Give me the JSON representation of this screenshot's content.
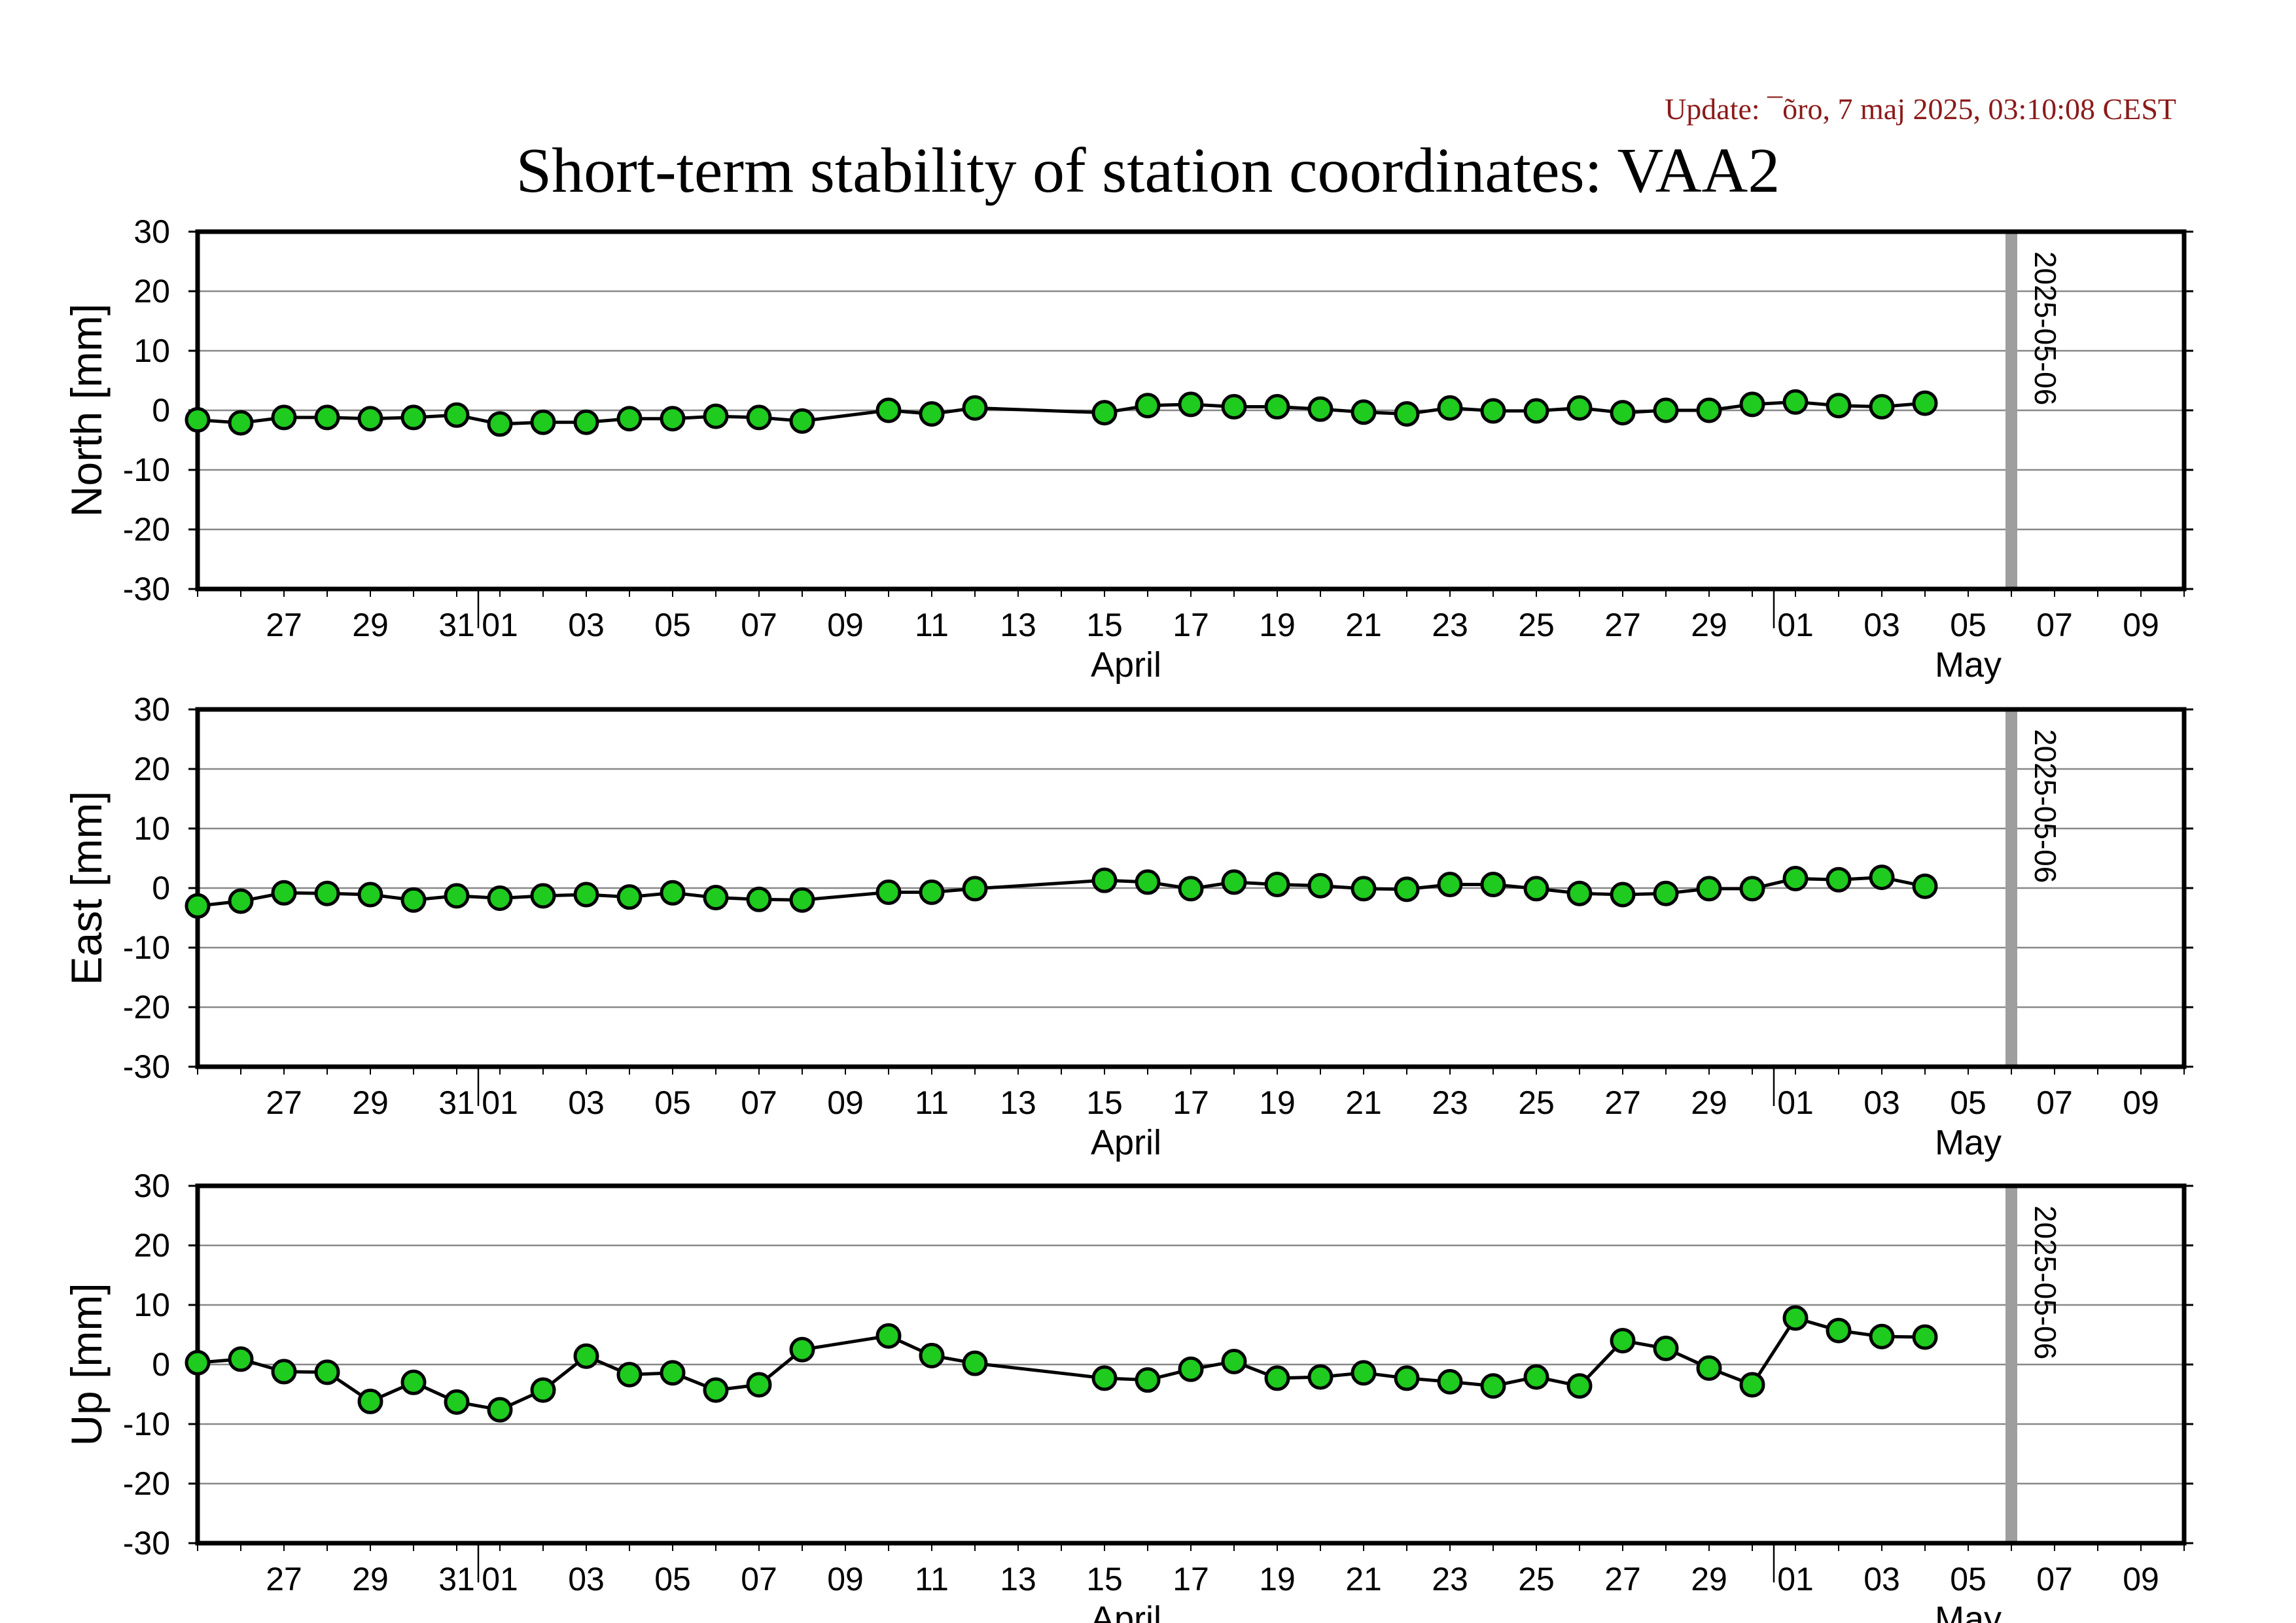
{
  "update_text": "Update: ¯õro, 7 maj 2025, 03:10:08 CEST",
  "title": "Short-term stability of station coordinates: VAA2",
  "colors": {
    "marker_fill": "#1ecb1e",
    "marker_stroke": "#000000",
    "line": "#000000",
    "current_day_bar": "#9e9e9e",
    "grid": "#888888",
    "update_text": "#8b1a1a"
  },
  "chart_data": [
    {
      "type": "line",
      "panel": "north",
      "ylabel": "North [mm]",
      "ylim": [
        -30,
        30
      ],
      "yticks": [
        "30",
        "20",
        "10",
        "0",
        "-10",
        "-20",
        "-30"
      ],
      "xlim": [
        "2025-03-25",
        "2025-05-10"
      ],
      "x_tick_labels": [
        "27",
        "29",
        "31",
        "01",
        "03",
        "05",
        "07",
        "09",
        "11",
        "13",
        "15",
        "17",
        "19",
        "21",
        "23",
        "25",
        "27",
        "29",
        "01",
        "03",
        "05",
        "07",
        "09"
      ],
      "month_labels": [
        "April",
        "May"
      ],
      "grid": true,
      "current_date_label": "2025-05-06",
      "series": [
        {
          "x": [
            "2025-03-25",
            "2025-03-26",
            "2025-03-27",
            "2025-03-28",
            "2025-03-29",
            "2025-03-30",
            "2025-03-31",
            "2025-04-01",
            "2025-04-02",
            "2025-04-03",
            "2025-04-04",
            "2025-04-05",
            "2025-04-06",
            "2025-04-07",
            "2025-04-08",
            "2025-04-10",
            "2025-04-11",
            "2025-04-12",
            "2025-04-15",
            "2025-04-16",
            "2025-04-17",
            "2025-04-18",
            "2025-04-19",
            "2025-04-20",
            "2025-04-21",
            "2025-04-22",
            "2025-04-23",
            "2025-04-24",
            "2025-04-25",
            "2025-04-26",
            "2025-04-27",
            "2025-04-28",
            "2025-04-29",
            "2025-04-30",
            "2025-05-01",
            "2025-05-02",
            "2025-05-03",
            "2025-05-04"
          ],
          "values": [
            -1.6,
            -2.1,
            -1.2,
            -1.2,
            -1.4,
            -1.2,
            -0.8,
            -2.3,
            -2.0,
            -2.0,
            -1.4,
            -1.4,
            -1.0,
            -1.2,
            -1.8,
            0.0,
            -0.6,
            0.4,
            -0.4,
            0.8,
            1.0,
            0.6,
            0.6,
            0.2,
            -0.3,
            -0.6,
            0.4,
            -0.1,
            -0.1,
            0.4,
            -0.4,
            0.0,
            0.0,
            1.0,
            1.4,
            0.8,
            0.6,
            1.2
          ]
        }
      ]
    },
    {
      "type": "line",
      "panel": "east",
      "ylabel": "East [mm]",
      "ylim": [
        -30,
        30
      ],
      "yticks": [
        "30",
        "20",
        "10",
        "0",
        "-10",
        "-20",
        "-30"
      ],
      "xlim": [
        "2025-03-25",
        "2025-05-10"
      ],
      "x_tick_labels": [
        "27",
        "29",
        "31",
        "01",
        "03",
        "05",
        "07",
        "09",
        "11",
        "13",
        "15",
        "17",
        "19",
        "21",
        "23",
        "25",
        "27",
        "29",
        "01",
        "03",
        "05",
        "07",
        "09"
      ],
      "month_labels": [
        "April",
        "May"
      ],
      "grid": true,
      "current_date_label": "2025-05-06",
      "series": [
        {
          "x": [
            "2025-03-25",
            "2025-03-26",
            "2025-03-27",
            "2025-03-28",
            "2025-03-29",
            "2025-03-30",
            "2025-03-31",
            "2025-04-01",
            "2025-04-02",
            "2025-04-03",
            "2025-04-04",
            "2025-04-05",
            "2025-04-06",
            "2025-04-07",
            "2025-04-08",
            "2025-04-10",
            "2025-04-11",
            "2025-04-12",
            "2025-04-15",
            "2025-04-16",
            "2025-04-17",
            "2025-04-18",
            "2025-04-19",
            "2025-04-20",
            "2025-04-21",
            "2025-04-22",
            "2025-04-23",
            "2025-04-24",
            "2025-04-25",
            "2025-04-26",
            "2025-04-27",
            "2025-04-28",
            "2025-04-29",
            "2025-04-30",
            "2025-05-01",
            "2025-05-02",
            "2025-05-03",
            "2025-05-04"
          ],
          "values": [
            -3.0,
            -2.2,
            -0.8,
            -0.9,
            -1.1,
            -2.0,
            -1.3,
            -1.7,
            -1.3,
            -1.1,
            -1.5,
            -0.8,
            -1.6,
            -1.9,
            -2.0,
            -0.7,
            -0.7,
            -0.1,
            1.3,
            1.0,
            -0.1,
            1.0,
            0.6,
            0.4,
            -0.1,
            -0.2,
            0.6,
            0.6,
            -0.1,
            -0.9,
            -1.1,
            -0.9,
            -0.1,
            -0.1,
            1.6,
            1.4,
            1.8,
            0.3
          ]
        }
      ]
    },
    {
      "type": "line",
      "panel": "up",
      "ylabel": "Up [mm]",
      "ylim": [
        -30,
        30
      ],
      "yticks": [
        "30",
        "20",
        "10",
        "0",
        "-10",
        "-20",
        "-30"
      ],
      "xlim": [
        "2025-03-25",
        "2025-05-10"
      ],
      "x_tick_labels": [
        "27",
        "29",
        "31",
        "01",
        "03",
        "05",
        "07",
        "09",
        "11",
        "13",
        "15",
        "17",
        "19",
        "21",
        "23",
        "25",
        "27",
        "29",
        "01",
        "03",
        "05",
        "07",
        "09"
      ],
      "month_labels": [
        "April",
        "May"
      ],
      "grid": true,
      "current_date_label": "2025-05-06",
      "series": [
        {
          "x": [
            "2025-03-25",
            "2025-03-26",
            "2025-03-27",
            "2025-03-28",
            "2025-03-29",
            "2025-03-30",
            "2025-03-31",
            "2025-04-01",
            "2025-04-02",
            "2025-04-03",
            "2025-04-04",
            "2025-04-05",
            "2025-04-06",
            "2025-04-07",
            "2025-04-08",
            "2025-04-10",
            "2025-04-11",
            "2025-04-12",
            "2025-04-15",
            "2025-04-16",
            "2025-04-17",
            "2025-04-18",
            "2025-04-19",
            "2025-04-20",
            "2025-04-21",
            "2025-04-22",
            "2025-04-23",
            "2025-04-24",
            "2025-04-25",
            "2025-04-26",
            "2025-04-27",
            "2025-04-28",
            "2025-04-29",
            "2025-04-30",
            "2025-05-01",
            "2025-05-02",
            "2025-05-03",
            "2025-05-04"
          ],
          "values": [
            0.3,
            0.9,
            -1.2,
            -1.3,
            -6.2,
            -3.0,
            -6.3,
            -7.6,
            -4.3,
            1.4,
            -1.7,
            -1.4,
            -4.3,
            -3.4,
            2.5,
            4.8,
            1.5,
            0.2,
            -2.3,
            -2.6,
            -0.8,
            0.5,
            -2.3,
            -2.1,
            -1.4,
            -2.3,
            -2.9,
            -3.6,
            -2.1,
            -3.6,
            4.0,
            2.7,
            -0.6,
            -3.4,
            7.8,
            5.7,
            4.7,
            4.6
          ]
        }
      ]
    }
  ]
}
